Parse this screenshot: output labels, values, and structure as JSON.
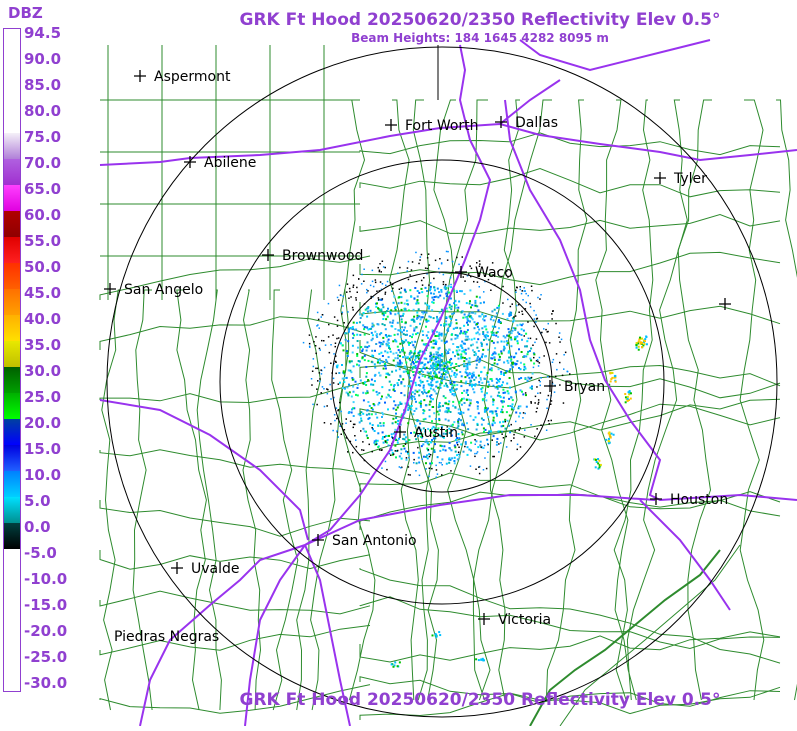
{
  "legend": {
    "unit": "DBZ",
    "levels": [
      "94.5",
      "90.0",
      "85.0",
      "80.0",
      "75.0",
      "70.0",
      "65.0",
      "60.0",
      "55.0",
      "50.0",
      "45.0",
      "40.0",
      "35.0",
      "30.0",
      "25.0",
      "20.0",
      "15.0",
      "10.0",
      "5.0",
      "0.0",
      "-5.0",
      "-10.0",
      "-15.0",
      "-20.0",
      "-25.0",
      "-30.0"
    ],
    "colors": [
      "#ffffff",
      "#ffffff",
      "#ffffff",
      "#ffffff",
      "#e8e0f0",
      "#c070e0",
      "#ff00ff",
      "#c00000",
      "#e00000",
      "#ff4000",
      "#ff8000",
      "#ffc000",
      "#e0e000",
      "#008000",
      "#00c000",
      "#00e000",
      "#0000ff",
      "#0060ff",
      "#00c0ff",
      "#000000",
      "#ffffff",
      "#ffffff",
      "#ffffff",
      "#ffffff",
      "#ffffff",
      "#ffffff"
    ]
  },
  "header": {
    "title": "GRK Ft Hood 20250620/2350 Reflectivity Elev 0.5°",
    "subtitle": "Beam Heights: 184 1645 4282 8095 m",
    "bottom_title": "GRK Ft Hood 20250620/2350 Reflectivity Elev 0.5°"
  },
  "cities": [
    {
      "name": "Aspermont"
    },
    {
      "name": "Abilene"
    },
    {
      "name": "Fort Worth"
    },
    {
      "name": "Dallas"
    },
    {
      "name": "Tyler"
    },
    {
      "name": "Brownwood"
    },
    {
      "name": "Waco"
    },
    {
      "name": "San Angelo"
    },
    {
      "name": "Bryan"
    },
    {
      "name": "Austin"
    },
    {
      "name": "Houston"
    },
    {
      "name": "San Antonio"
    },
    {
      "name": "Uvalde"
    },
    {
      "name": "Victoria"
    },
    {
      "name": "Piedras Negras"
    }
  ],
  "colors": {
    "accent": "#9040d0",
    "county_lines": "#2e8b2e",
    "highways": "#9933ee",
    "range_rings": "#000000"
  }
}
